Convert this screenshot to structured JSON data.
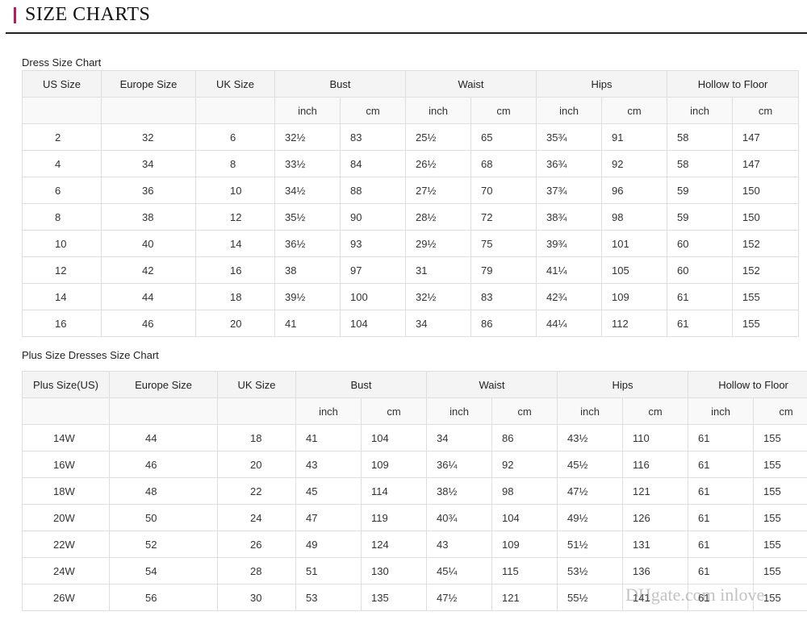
{
  "header": {
    "title": "SIZE CHARTS",
    "accent_color": "#c2185b"
  },
  "dress_chart": {
    "label": "Dress Size Chart",
    "columns": [
      "US Size",
      "Europe Size",
      "UK Size"
    ],
    "groups": [
      "Bust",
      "Waist",
      "Hips",
      "Hollow to Floor"
    ],
    "units": [
      "inch",
      "cm"
    ],
    "rows": [
      [
        "2",
        "32",
        "6",
        "32½",
        "83",
        "25½",
        "65",
        "35¾",
        "91",
        "58",
        "147"
      ],
      [
        "4",
        "34",
        "8",
        "33½",
        "84",
        "26½",
        "68",
        "36¾",
        "92",
        "58",
        "147"
      ],
      [
        "6",
        "36",
        "10",
        "34½",
        "88",
        "27½",
        "70",
        "37¾",
        "96",
        "59",
        "150"
      ],
      [
        "8",
        "38",
        "12",
        "35½",
        "90",
        "28½",
        "72",
        "38¾",
        "98",
        "59",
        "150"
      ],
      [
        "10",
        "40",
        "14",
        "36½",
        "93",
        "29½",
        "75",
        "39¾",
        "101",
        "60",
        "152"
      ],
      [
        "12",
        "42",
        "16",
        "38",
        "97",
        "31",
        "79",
        "41¼",
        "105",
        "60",
        "152"
      ],
      [
        "14",
        "44",
        "18",
        "39½",
        "100",
        "32½",
        "83",
        "42¾",
        "109",
        "61",
        "155"
      ],
      [
        "16",
        "46",
        "20",
        "41",
        "104",
        "34",
        "86",
        "44¼",
        "112",
        "61",
        "155"
      ]
    ]
  },
  "plus_chart": {
    "label": "Plus Size Dresses Size Chart",
    "columns": [
      "Plus Size(US)",
      "Europe Size",
      "UK Size"
    ],
    "groups": [
      "Bust",
      "Waist",
      "Hips",
      "Hollow to Floor"
    ],
    "units": [
      "inch",
      "cm"
    ],
    "rows": [
      [
        "14W",
        "44",
        "18",
        "41",
        "104",
        "34",
        "86",
        "43½",
        "110",
        "61",
        "155"
      ],
      [
        "16W",
        "46",
        "20",
        "43",
        "109",
        "36¼",
        "92",
        "45½",
        "116",
        "61",
        "155"
      ],
      [
        "18W",
        "48",
        "22",
        "45",
        "114",
        "38½",
        "98",
        "47½",
        "121",
        "61",
        "155"
      ],
      [
        "20W",
        "50",
        "24",
        "47",
        "119",
        "40¾",
        "104",
        "49½",
        "126",
        "61",
        "155"
      ],
      [
        "22W",
        "52",
        "26",
        "49",
        "124",
        "43",
        "109",
        "51½",
        "131",
        "61",
        "155"
      ],
      [
        "24W",
        "54",
        "28",
        "51",
        "130",
        "45¼",
        "115",
        "53½",
        "136",
        "61",
        "155"
      ],
      [
        "26W",
        "56",
        "30",
        "53",
        "135",
        "47½",
        "121",
        "55½",
        "141",
        "61",
        "155"
      ]
    ]
  },
  "watermark": {
    "text": "DHgate.com  inlove"
  }
}
